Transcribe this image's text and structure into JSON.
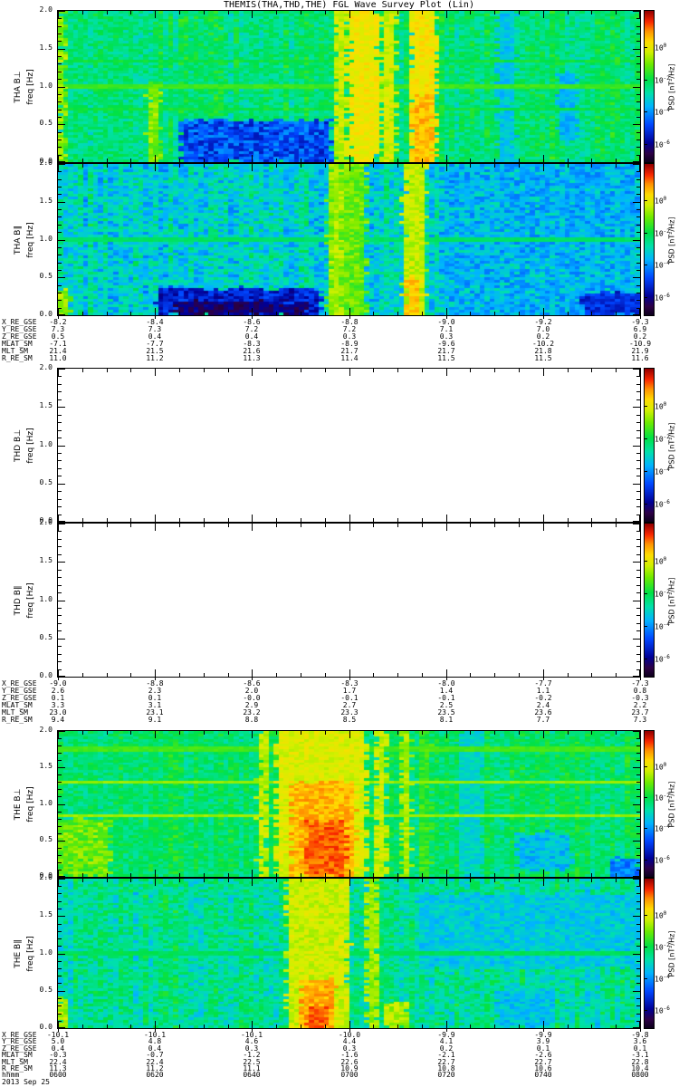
{
  "title": "THEMIS(THA,THD,THE) FGL Wave Survey Plot (Lin)",
  "date_label": "2013 Sep 25",
  "y_axis": {
    "label": "freq [Hz]",
    "tick_labels": [
      "0.0",
      "0.5",
      "1.0",
      "1.5",
      "2.0"
    ]
  },
  "x_axis": {
    "row_label": "hhmm",
    "tick_labels": [
      "0600",
      "0620",
      "0640",
      "0700",
      "0720",
      "0740",
      "0800"
    ]
  },
  "colorbar": {
    "label": "PSD [nT²/Hz]",
    "tick_base": "10",
    "tick_exponents": [
      "0",
      "-2",
      "-4",
      "-6"
    ]
  },
  "chart_data": {
    "type": "heatmap",
    "title": "THEMIS(THA,THD,THE) FGL Wave Survey Plot (Lin)",
    "date": "2013 Sep 25",
    "time_ticks_hhmm": [
      "0600",
      "0620",
      "0640",
      "0700",
      "0720",
      "0740",
      "0800"
    ],
    "freq_axis": {
      "label": "freq [Hz]",
      "range_hz": [
        0,
        2
      ],
      "ticks_hz": [
        0.0,
        0.5,
        1.0,
        1.5,
        2.0
      ]
    },
    "colorbar": {
      "label": "PSD [nT²/Hz]",
      "tick_values": [
        "10^0",
        "10^-2",
        "10^-4",
        "10^-6"
      ]
    },
    "groups": [
      {
        "probe": "THA",
        "panels": [
          {
            "name": "THA B⊥",
            "ylabel": "freq [Hz]",
            "empty": false,
            "render": {
              "seed": 7,
              "base": -2.4,
              "noise": 0.55,
              "streak": 0.35,
              "features": [
                {
                  "type": "blob",
                  "t0": 0,
                  "t1": 0.012,
                  "lev": -0.9,
                  "n": 0.5
                },
                {
                  "type": "dim",
                  "t0": 0.21,
                  "t1": 0.47,
                  "f0": 0,
                  "f1": 0.55,
                  "lev": -4.7,
                  "n": 0.8
                },
                {
                  "type": "blob",
                  "t0": 0.155,
                  "t1": 0.175,
                  "f0": 0,
                  "f1": 1.05,
                  "lev": -1.0,
                  "n": 0.5
                },
                {
                  "type": "blob",
                  "t0": 0.475,
                  "t1": 0.495,
                  "lev": -0.5,
                  "n": 0.4
                },
                {
                  "type": "blob",
                  "t0": 0.5,
                  "t1": 0.55,
                  "lev": -0.05,
                  "n": 0.35
                },
                {
                  "type": "blob",
                  "t0": 0.555,
                  "t1": 0.58,
                  "lev": -0.45,
                  "n": 0.4
                },
                {
                  "type": "blob",
                  "t0": 0.605,
                  "t1": 0.65,
                  "lev": 0.0,
                  "n": 0.35
                },
                {
                  "type": "blob",
                  "t0": 0.61,
                  "t1": 0.645,
                  "f0": 0,
                  "f1": 0.9,
                  "lev": 0.5,
                  "n": 0.4
                },
                {
                  "type": "dim",
                  "t0": 0.755,
                  "t1": 0.785,
                  "lev": -3.4,
                  "n": 0.4
                },
                {
                  "type": "dim",
                  "t0": 0.86,
                  "t1": 0.89,
                  "f0": 0.3,
                  "f1": 1.2,
                  "lev": -3.6,
                  "n": 0.4
                },
                {
                  "type": "hline",
                  "f": 1.0,
                  "lev": -1.55
                },
                {
                  "type": "hline",
                  "f": 0.7,
                  "lev": -1.95
                },
                {
                  "type": "hline",
                  "f": 1.35,
                  "lev": -1.95
                }
              ]
            }
          },
          {
            "name": "THA B∥",
            "ylabel": "freq [Hz]",
            "empty": false,
            "render": {
              "seed": 13,
              "base": -3.1,
              "noise": 0.8,
              "streak": 0.4,
              "features": [
                {
                  "type": "blob",
                  "t0": 0,
                  "t1": 0.02,
                  "f0": 0,
                  "f1": 0.35,
                  "lev": -0.9,
                  "n": 0.5
                },
                {
                  "type": "dim",
                  "t0": 0.17,
                  "t1": 0.45,
                  "f0": 0,
                  "f1": 0.35,
                  "lev": -5.3,
                  "n": 0.7
                },
                {
                  "type": "dim",
                  "t0": 0.2,
                  "t1": 0.43,
                  "f0": 0,
                  "f1": 0.18,
                  "lev": -6.1,
                  "n": 0.5
                },
                {
                  "type": "blob",
                  "t0": 0.465,
                  "t1": 0.53,
                  "lev": -1.2,
                  "n": 0.5
                },
                {
                  "type": "blob",
                  "t0": 0.47,
                  "t1": 0.487,
                  "lev": -0.7,
                  "n": 0.4
                },
                {
                  "type": "blob",
                  "t0": 0.595,
                  "t1": 0.63,
                  "lev": -0.55,
                  "n": 0.4
                },
                {
                  "type": "blob",
                  "t0": 0.6,
                  "t1": 0.622,
                  "f0": 0,
                  "f1": 0.5,
                  "lev": 0.3,
                  "n": 0.4
                },
                {
                  "type": "dim",
                  "t0": 0.66,
                  "t1": 1,
                  "lev": -3.5,
                  "n": 0.8
                },
                {
                  "type": "dim",
                  "t0": 0.9,
                  "t1": 1,
                  "f0": 0,
                  "f1": 0.3,
                  "lev": -5.1,
                  "n": 0.5
                },
                {
                  "type": "hline",
                  "f": 1.0,
                  "lev": -2.3
                }
              ]
            }
          }
        ],
        "ephemeris": [
          {
            "label": "X_RE_GSE",
            "values": [
              "-8.2",
              "-8.4",
              "-8.6",
              "-8.8",
              "-9.0",
              "-9.2",
              "-9.3"
            ]
          },
          {
            "label": "Y_RE_GSE",
            "values": [
              "7.3",
              "7.3",
              "7.2",
              "7.2",
              "7.1",
              "7.0",
              "6.9"
            ]
          },
          {
            "label": "Z_RE_GSE",
            "values": [
              "0.5",
              "0.4",
              "0.4",
              "0.3",
              "0.3",
              "0.2",
              "0.2"
            ]
          },
          {
            "label": "MLAT_SM",
            "values": [
              "-7.1",
              "-7.7",
              "-8.3",
              "-8.9",
              "-9.6",
              "-10.2",
              "-10.9"
            ]
          },
          {
            "label": "MLT_SM",
            "values": [
              "21.4",
              "21.5",
              "21.6",
              "21.7",
              "21.7",
              "21.8",
              "21.9"
            ]
          },
          {
            "label": "R_RE_SM",
            "values": [
              "11.0",
              "11.2",
              "11.3",
              "11.4",
              "11.5",
              "11.5",
              "11.6"
            ]
          }
        ]
      },
      {
        "probe": "THD",
        "panels": [
          {
            "name": "THD B⊥",
            "ylabel": "freq [Hz]",
            "empty": true,
            "render": null
          },
          {
            "name": "THD B∥",
            "ylabel": "freq [Hz]",
            "empty": true,
            "render": null
          }
        ],
        "ephemeris": [
          {
            "label": "X_RE_GSE",
            "values": [
              "-9.0",
              "-8.8",
              "-8.6",
              "-8.3",
              "-8.0",
              "-7.7",
              "-7.3"
            ]
          },
          {
            "label": "Y_RE_GSE",
            "values": [
              "2.6",
              "2.3",
              "2.0",
              "1.7",
              "1.4",
              "1.1",
              "0.8"
            ]
          },
          {
            "label": "Z_RE_GSE",
            "values": [
              "0.1",
              "0.1",
              "-0.0",
              "-0.1",
              "-0.1",
              "-0.2",
              "-0.3"
            ]
          },
          {
            "label": "MLAT_SM",
            "values": [
              "3.3",
              "3.1",
              "2.9",
              "2.7",
              "2.5",
              "2.4",
              "2.2"
            ]
          },
          {
            "label": "MLT_SM",
            "values": [
              "23.0",
              "23.1",
              "23.2",
              "23.3",
              "23.5",
              "23.6",
              "23.7"
            ]
          },
          {
            "label": "R_RE_SM",
            "values": [
              "9.4",
              "9.1",
              "8.8",
              "8.5",
              "8.1",
              "7.7",
              "7.3"
            ]
          }
        ]
      },
      {
        "probe": "THE",
        "panels": [
          {
            "name": "THE B⊥",
            "ylabel": "freq [Hz]",
            "empty": false,
            "render": {
              "seed": 23,
              "base": -2.3,
              "noise": 0.5,
              "streak": 0.35,
              "features": [
                {
                  "type": "blob",
                  "t0": 0,
                  "t1": 0.09,
                  "f0": 0,
                  "f1": 0.8,
                  "lev": -1.2,
                  "n": 0.6
                },
                {
                  "type": "blob",
                  "t0": 0.345,
                  "t1": 0.36,
                  "lev": -0.6,
                  "n": 0.4
                },
                {
                  "type": "blob",
                  "t0": 0.375,
                  "t1": 0.53,
                  "lev": -0.3,
                  "n": 0.35
                },
                {
                  "type": "blob",
                  "t0": 0.4,
                  "t1": 0.51,
                  "f0": 0,
                  "f1": 1.3,
                  "lev": 0.5,
                  "n": 0.4
                },
                {
                  "type": "blob",
                  "t0": 0.425,
                  "t1": 0.495,
                  "f0": 0,
                  "f1": 0.75,
                  "lev": 1.1,
                  "n": 0.35
                },
                {
                  "type": "blob",
                  "t0": 0.545,
                  "t1": 0.565,
                  "lev": -0.5,
                  "n": 0.4
                },
                {
                  "type": "blob",
                  "t0": 0.59,
                  "t1": 0.605,
                  "lev": -0.75,
                  "n": 0.4
                },
                {
                  "type": "blob",
                  "t0": 0.62,
                  "t1": 0.64,
                  "lev": -1.6,
                  "n": 0.4
                },
                {
                  "type": "dim",
                  "t0": 0.69,
                  "t1": 0.73,
                  "lev": -3.1,
                  "n": 0.4
                },
                {
                  "type": "dim",
                  "t0": 0.79,
                  "t1": 0.88,
                  "f0": 0.1,
                  "f1": 0.6,
                  "lev": -3.5,
                  "n": 0.5
                },
                {
                  "type": "dim",
                  "t0": 0.95,
                  "t1": 1,
                  "f0": 0,
                  "f1": 0.25,
                  "lev": -4.2,
                  "n": 0.5
                },
                {
                  "type": "hline",
                  "f": 0.85,
                  "lev": -0.8
                },
                {
                  "type": "hline",
                  "f": 1.3,
                  "lev": -0.85
                },
                {
                  "type": "hline",
                  "f": 1.75,
                  "lev": -1.5
                }
              ]
            }
          },
          {
            "name": "THE B∥",
            "ylabel": "freq [Hz]",
            "empty": false,
            "render": {
              "seed": 31,
              "base": -2.7,
              "noise": 0.65,
              "streak": 0.4,
              "features": [
                {
                  "type": "blob",
                  "t0": 0,
                  "t1": 0.02,
                  "f0": 0,
                  "f1": 0.4,
                  "lev": -0.7,
                  "n": 0.5
                },
                {
                  "type": "blob",
                  "t0": 0.395,
                  "t1": 0.5,
                  "lev": -0.45,
                  "n": 0.4
                },
                {
                  "type": "blob",
                  "t0": 0.415,
                  "t1": 0.475,
                  "f0": 0,
                  "f1": 0.65,
                  "lev": 0.55,
                  "n": 0.4
                },
                {
                  "type": "blob",
                  "t0": 0.43,
                  "t1": 0.465,
                  "f0": 0,
                  "f1": 0.3,
                  "lev": 1.15,
                  "n": 0.3
                },
                {
                  "type": "blob",
                  "t0": 0.53,
                  "t1": 0.55,
                  "lev": -0.8,
                  "n": 0.4
                },
                {
                  "type": "blob",
                  "t0": 0.56,
                  "t1": 0.6,
                  "f0": 0,
                  "f1": 0.35,
                  "lev": -0.7,
                  "n": 0.5
                },
                {
                  "type": "dim",
                  "t0": 0.62,
                  "t1": 1,
                  "f0": 0.8,
                  "f1": 1.8,
                  "lev": -3.3,
                  "n": 0.5
                },
                {
                  "type": "dim",
                  "t0": 0.75,
                  "t1": 0.85,
                  "f0": 0,
                  "f1": 0.5,
                  "lev": -3.4,
                  "n": 0.5
                },
                {
                  "type": "hline",
                  "f": 1.0,
                  "lev": -2.2
                }
              ]
            }
          }
        ],
        "ephemeris": [
          {
            "label": "X_RE_GSE",
            "values": [
              "-10.1",
              "-10.1",
              "-10.1",
              "-10.0",
              "-9.9",
              "-9.9",
              "-9.8"
            ]
          },
          {
            "label": "Y_RE_GSE",
            "values": [
              "5.0",
              "4.8",
              "4.6",
              "4.4",
              "4.1",
              "3.9",
              "3.6"
            ]
          },
          {
            "label": "Z_RE_GSE",
            "values": [
              "0.4",
              "0.4",
              "0.3",
              "0.3",
              "0.2",
              "0.1",
              "0.1"
            ]
          },
          {
            "label": "MLAT_SM",
            "values": [
              "-0.3",
              "-0.7",
              "-1.2",
              "-1.6",
              "-2.1",
              "-2.6",
              "-3.1"
            ]
          },
          {
            "label": "MLT_SM",
            "values": [
              "22.4",
              "22.4",
              "22.5",
              "22.6",
              "22.7",
              "22.7",
              "22.8"
            ]
          },
          {
            "label": "R_RE_SM",
            "values": [
              "11.3",
              "11.2",
              "11.1",
              "10.9",
              "10.8",
              "10.6",
              "10.4"
            ]
          },
          {
            "label": "hhmm",
            "values": [
              "0600",
              "0620",
              "0640",
              "0700",
              "0720",
              "0740",
              "0800"
            ]
          }
        ]
      }
    ]
  }
}
